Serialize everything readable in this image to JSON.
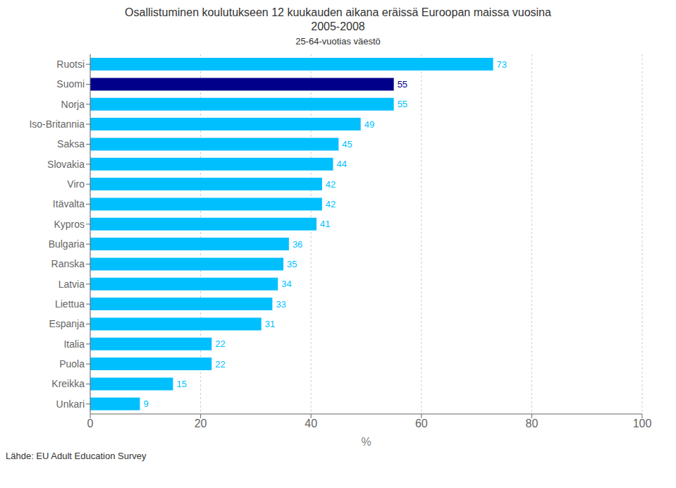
{
  "chart_data": {
    "type": "bar",
    "orientation": "horizontal",
    "title": "Osallistuminen koulutukseen 12 kuukauden aikana eräissä Euroopan maissa vuosina\n2005-2008",
    "subtitle": "25-64-vuotias väestö",
    "footer": "Lähde: EU Adult Education Survey",
    "xlabel": "%",
    "categories": [
      "Ruotsi",
      "Suomi",
      "Norja",
      "Iso-Britannia",
      "Saksa",
      "Slovakia",
      "Viro",
      "Itävalta",
      "Kypros",
      "Bulgaria",
      "Ranska",
      "Latvia",
      "Liettua",
      "Espanja",
      "Italia",
      "Puola",
      "Kreikka",
      "Unkari"
    ],
    "values": [
      73,
      55,
      55,
      49,
      45,
      44,
      42,
      42,
      41,
      36,
      35,
      34,
      33,
      31,
      22,
      22,
      15,
      9
    ],
    "colors": [
      "#00BFFF",
      "#00008B",
      "#00BFFF",
      "#00BFFF",
      "#00BFFF",
      "#00BFFF",
      "#00BFFF",
      "#00BFFF",
      "#00BFFF",
      "#00BFFF",
      "#00BFFF",
      "#00BFFF",
      "#00BFFF",
      "#00BFFF",
      "#00BFFF",
      "#00BFFF",
      "#00BFFF",
      "#00BFFF"
    ],
    "xlim": [
      0,
      100
    ],
    "xticks": [
      0,
      20,
      40,
      60,
      80,
      100
    ],
    "grid": true,
    "data_labels": true
  }
}
